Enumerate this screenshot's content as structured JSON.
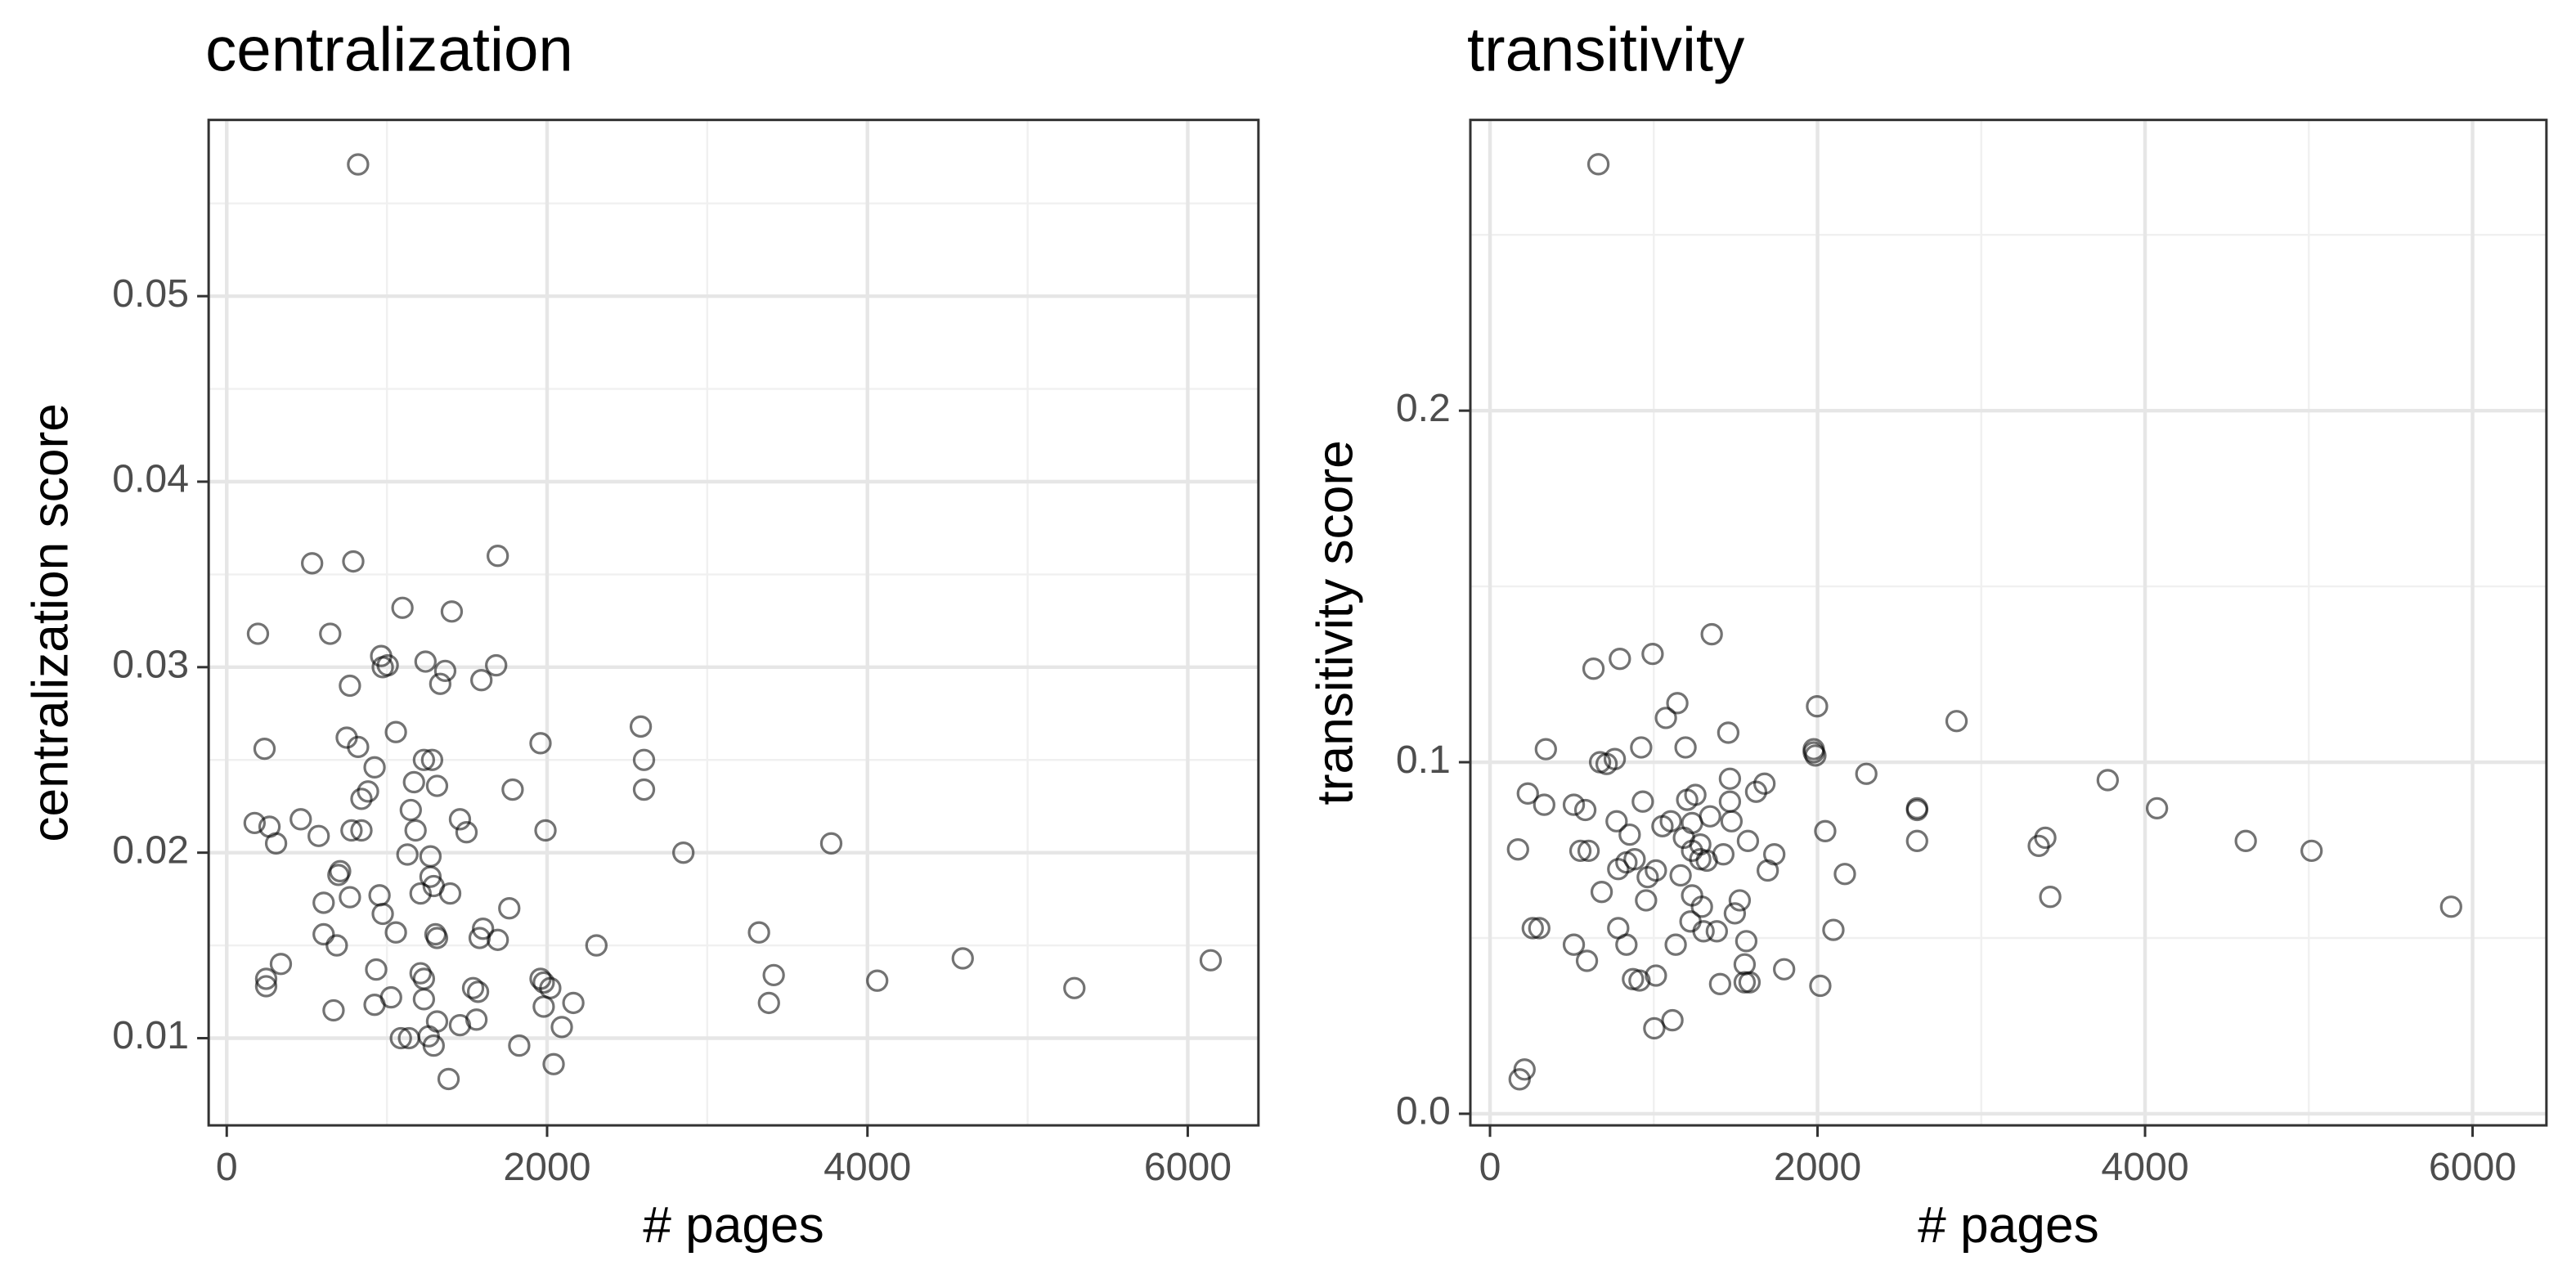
{
  "chart_data": [
    {
      "type": "scatter",
      "title": "centralization",
      "xlabel": "# pages",
      "ylabel": "centralization score",
      "color": "#000000",
      "grid": true,
      "xlim": [
        -113,
        6441
      ],
      "ylim": [
        0.0053,
        0.0595
      ],
      "xticks": [
        0,
        2000,
        4000,
        6000
      ],
      "yticks": [
        0.01,
        0.02,
        0.03,
        0.04,
        0.05
      ],
      "minor_xticks": [
        1000,
        3000,
        5000
      ],
      "minor_yticks": [
        0.015,
        0.025,
        0.035,
        0.045,
        0.055
      ],
      "x": [
        820,
        533,
        1692,
        790,
        195,
        646,
        964,
        1405,
        1097,
        1241,
        1364,
        974,
        1590,
        769,
        1005,
        749,
        1333,
        1682,
        1959,
        2585,
        2605,
        2605,
        236,
        820,
        1056,
        1231,
        1282,
        923,
        1313,
        882,
        841,
        1169,
        1785,
        174,
        267,
        308,
        574,
        462,
        779,
        841,
        1149,
        1179,
        1456,
        1497,
        1990,
        2851,
        3774,
        1272,
        708,
        1272,
        1292,
        605,
        697,
        954,
        974,
        1128,
        1056,
        1395,
        605,
        687,
        769,
        1210,
        1600,
        1579,
        1764,
        1692,
        1313,
        1303,
        2308,
        3323,
        338,
        246,
        246,
        933,
        667,
        923,
        1026,
        1087,
        1138,
        1231,
        1231,
        1261,
        1292,
        1313,
        1210,
        1456,
        1538,
        1569,
        1559,
        1959,
        1979,
        2020,
        1979,
        2092,
        2164,
        1826,
        2041,
        1385,
        3415,
        3385,
        4061,
        4595,
        5292,
        6143
      ],
      "values": [
        0.0571,
        0.0356,
        0.036,
        0.0357,
        0.0318,
        0.0318,
        0.0306,
        0.033,
        0.0332,
        0.0303,
        0.0298,
        0.03,
        0.0293,
        0.029,
        0.0301,
        0.0262,
        0.0291,
        0.0301,
        0.0259,
        0.0268,
        0.025,
        0.0234,
        0.0256,
        0.0257,
        0.0265,
        0.025,
        0.025,
        0.0246,
        0.0236,
        0.0233,
        0.0229,
        0.0238,
        0.0234,
        0.0216,
        0.0214,
        0.0205,
        0.0209,
        0.0218,
        0.0212,
        0.0212,
        0.0223,
        0.0212,
        0.0218,
        0.0211,
        0.0212,
        0.02,
        0.0205,
        0.0198,
        0.019,
        0.0187,
        0.0182,
        0.0173,
        0.0188,
        0.0177,
        0.0167,
        0.0199,
        0.0157,
        0.0178,
        0.0156,
        0.015,
        0.0176,
        0.0178,
        0.0159,
        0.0154,
        0.017,
        0.0153,
        0.0154,
        0.0156,
        0.015,
        0.0157,
        0.014,
        0.0132,
        0.0128,
        0.0137,
        0.0115,
        0.0118,
        0.0122,
        0.01,
        0.01,
        0.0132,
        0.0121,
        0.0101,
        0.0096,
        0.0109,
        0.0135,
        0.0107,
        0.0127,
        0.0125,
        0.011,
        0.0132,
        0.013,
        0.0127,
        0.0117,
        0.0106,
        0.0119,
        0.0096,
        0.0086,
        0.0078,
        0.0134,
        0.0119,
        0.0131,
        0.0143,
        0.0127,
        0.0142
      ]
    },
    {
      "type": "scatter",
      "title": "transitivity",
      "xlabel": "# pages",
      "ylabel": "transitivity score",
      "color": "#000000",
      "grid": true,
      "xlim": [
        -120,
        6451
      ],
      "ylim": [
        -0.0033,
        0.2827
      ],
      "xticks": [
        0,
        2000,
        4000,
        6000
      ],
      "yticks": [
        {
          "value": 0,
          "label": "0.0"
        },
        0.1,
        0.2
      ],
      "minor_xticks": [
        1000,
        3000,
        5000
      ],
      "minor_yticks": [
        0.05,
        0.15,
        0.25
      ],
      "x": [
        662,
        211,
        181,
        171,
        261,
        301,
        231,
        341,
        331,
        512,
        582,
        552,
        602,
        632,
        672,
        712,
        762,
        773,
        793,
        783,
        853,
        833,
        883,
        923,
        933,
        953,
        993,
        1013,
        833,
        873,
        1053,
        1074,
        1104,
        1134,
        1144,
        1164,
        1184,
        1194,
        1234,
        1234,
        1234,
        1254,
        1284,
        1284,
        1294,
        1304,
        1324,
        1344,
        1354,
        1405,
        1425,
        1455,
        1465,
        1465,
        1475,
        1525,
        1555,
        1565,
        1575,
        1585,
        1625,
        1676,
        1696,
        1736,
        1796,
        1997,
        1977,
        1977,
        1987,
        2017,
        2047,
        2097,
        2167,
        2298,
        2608,
        2608,
        2608,
        2849,
        3351,
        3391,
        3421,
        3772,
        4073,
        4615,
        5017,
        5869,
        1495,
        1204,
        1013,
        963,
        783,
        682,
        512,
        592,
        913,
        1114,
        1003,
        1224,
        1385,
        1555
      ],
      "values": [
        0.2701,
        0.0126,
        0.0098,
        0.0752,
        0.0528,
        0.0528,
        0.0911,
        0.1037,
        0.0879,
        0.0879,
        0.0864,
        0.0748,
        0.0748,
        0.1266,
        0.1,
        0.0995,
        0.1009,
        0.0832,
        0.1294,
        0.0696,
        0.0794,
        0.0715,
        0.0724,
        0.1042,
        0.0888,
        0.0607,
        0.1308,
        0.0393,
        0.0481,
        0.0383,
        0.0818,
        0.1126,
        0.0832,
        0.0481,
        0.1168,
        0.0678,
        0.0785,
        0.1042,
        0.0827,
        0.0748,
        0.0621,
        0.0907,
        0.0766,
        0.0724,
        0.0589,
        0.0519,
        0.072,
        0.0846,
        0.1364,
        0.0369,
        0.0738,
        0.1084,
        0.0888,
        0.0953,
        0.0832,
        0.0607,
        0.0425,
        0.0491,
        0.0776,
        0.0374,
        0.0916,
        0.0939,
        0.0692,
        0.0738,
        0.0411,
        0.1159,
        0.1037,
        0.1028,
        0.1019,
        0.0364,
        0.0804,
        0.0523,
        0.0682,
        0.0967,
        0.0869,
        0.0864,
        0.0776,
        0.1117,
        0.0762,
        0.0785,
        0.0617,
        0.0949,
        0.0869,
        0.0776,
        0.0748,
        0.0589,
        0.057,
        0.0893,
        0.0692,
        0.0673,
        0.0528,
        0.0631,
        0.0481,
        0.0435,
        0.0379,
        0.0266,
        0.0243,
        0.0547,
        0.0519,
        0.0374
      ]
    }
  ]
}
